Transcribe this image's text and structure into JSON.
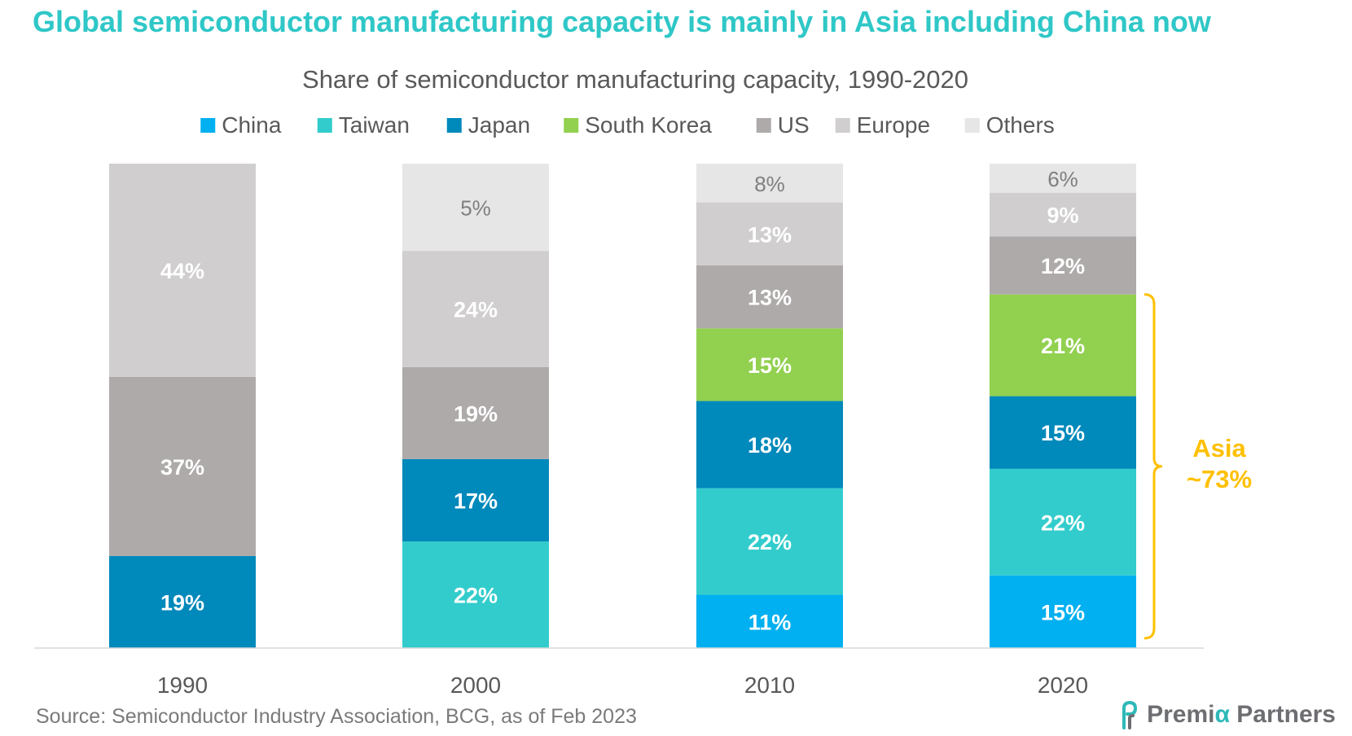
{
  "headline": "Global semiconductor manufacturing capacity is mainly in Asia including China now",
  "source": "Source: Semiconductor Industry Association, BCG, as of Feb 2023",
  "logo": {
    "text_before": "Premi",
    "alpha_glyph": "α",
    "text_after": " Partners",
    "icon": "premia-logo-icon"
  },
  "colors": {
    "headline": "#2fc7c7",
    "China": "#00b0f0",
    "Taiwan": "#33cccc",
    "Japan": "#0089bb",
    "South Korea": "#92d050",
    "US": "#aeaaaa",
    "Europe": "#d0cece",
    "Others": "#e7e6e6",
    "annotation": "#ffc000"
  },
  "chart_data": {
    "type": "bar",
    "stacked": true,
    "title": "Share of semiconductor manufacturing capacity, 1990-2020",
    "legend_position": "top",
    "categories": [
      "1990",
      "2000",
      "2010",
      "2020"
    ],
    "series": [
      {
        "name": "China",
        "values": [
          0,
          0,
          11,
          15
        ]
      },
      {
        "name": "Taiwan",
        "values": [
          0,
          22,
          22,
          22
        ]
      },
      {
        "name": "Japan",
        "values": [
          19,
          17,
          18,
          15
        ]
      },
      {
        "name": "South Korea",
        "values": [
          0,
          0,
          15,
          21
        ]
      },
      {
        "name": "US",
        "values": [
          37,
          19,
          13,
          12
        ]
      },
      {
        "name": "Europe",
        "values": [
          44,
          24,
          13,
          9
        ]
      },
      {
        "name": "Others",
        "values": [
          0,
          5,
          8,
          6
        ]
      }
    ],
    "value_suffix": "%",
    "grid": false,
    "annotation": {
      "label_line1": "Asia",
      "label_line2": "~73%",
      "category": "2020",
      "series": [
        "China",
        "Taiwan",
        "Japan",
        "South Korea"
      ]
    }
  }
}
